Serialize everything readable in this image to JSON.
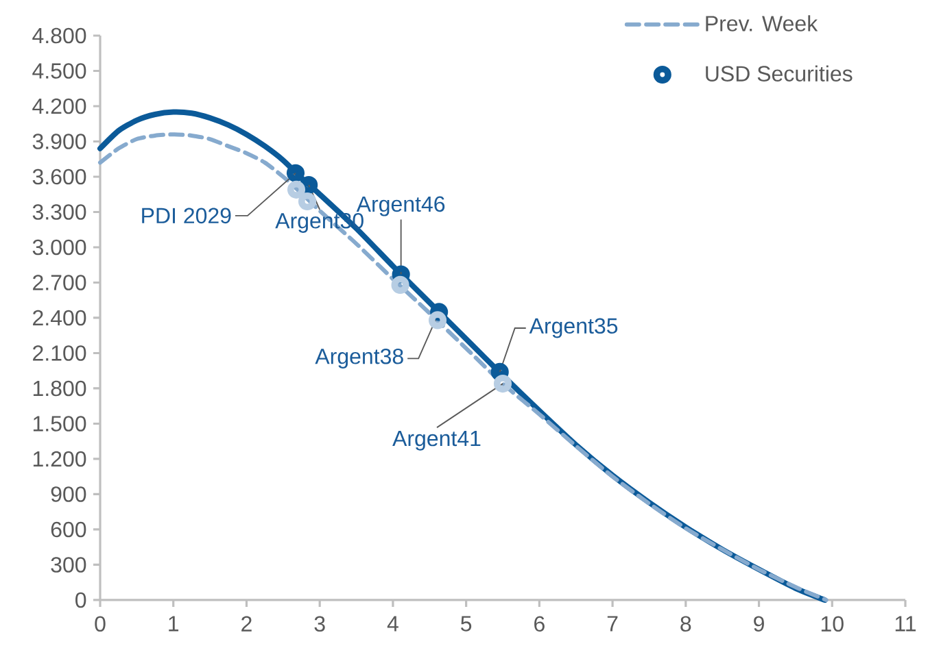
{
  "chart_data": {
    "type": "line",
    "xlim": [
      0,
      11
    ],
    "ylim": [
      0,
      4800
    ],
    "xticks": [
      0,
      1,
      2,
      3,
      4,
      5,
      6,
      7,
      8,
      9,
      10,
      11
    ],
    "yticks": [
      0,
      300,
      600,
      900,
      {
        "value": 1200,
        "label": "1.200"
      },
      {
        "value": 1500,
        "label": "1.500"
      },
      {
        "value": 1800,
        "label": "1.800"
      },
      {
        "value": 2100,
        "label": "2.100"
      },
      {
        "value": 2400,
        "label": "2.400"
      },
      {
        "value": 2700,
        "label": "2.700"
      },
      {
        "value": 3000,
        "label": "3.000"
      },
      {
        "value": 3300,
        "label": "3.300"
      },
      {
        "value": 3600,
        "label": "3.600"
      },
      {
        "value": 3900,
        "label": "3.900"
      },
      {
        "value": 4200,
        "label": "4.200"
      },
      {
        "value": 4500,
        "label": "4.500"
      },
      {
        "value": 4800,
        "label": "4.800"
      }
    ],
    "legend": "top right",
    "series": [
      {
        "color": "#0b5a99",
        "line_style": "solid",
        "marker": "none",
        "x": [
          0,
          0.25,
          0.5,
          0.75,
          1,
          1.25,
          1.5,
          1.75,
          2,
          2.25,
          2.5,
          2.75,
          3,
          3.5,
          4,
          4.5,
          5,
          5.5,
          6,
          6.5,
          7,
          7.5,
          8,
          8.5,
          9,
          9.5,
          9.9
        ],
        "values": [
          3840,
          3990,
          4080,
          4130,
          4150,
          4140,
          4100,
          4040,
          3960,
          3860,
          3740,
          3590,
          3450,
          3160,
          2840,
          2530,
          2220,
          1910,
          1610,
          1320,
          1060,
          830,
          620,
          430,
          260,
          100,
          0
        ]
      },
      {
        "name": "Prev. Week",
        "color": "#86aace",
        "line_style": "dashed",
        "marker": "none",
        "x": [
          0,
          0.25,
          0.5,
          0.75,
          1,
          1.25,
          1.5,
          1.75,
          2,
          2.25,
          2.5,
          2.75,
          3,
          3.5,
          4,
          4.5,
          5,
          5.5,
          6,
          6.5,
          7,
          7.5,
          8,
          8.5,
          9,
          9.5,
          9.92
        ],
        "values": [
          3720,
          3840,
          3920,
          3950,
          3960,
          3950,
          3920,
          3860,
          3800,
          3720,
          3600,
          3460,
          3310,
          3030,
          2730,
          2440,
          2140,
          1840,
          1580,
          1310,
          1050,
          820,
          610,
          430,
          260,
          110,
          0
        ]
      },
      {
        "name": "USD Securities",
        "type": "scatter",
        "color": "#0b5a99",
        "marker": "circle",
        "x": [
          2.67,
          2.85,
          4.11,
          4.63,
          5.46
        ],
        "values": [
          3630,
          3530,
          2770,
          2450,
          1940
        ]
      },
      {
        "type": "scatter",
        "color": "#b7cde3",
        "marker": "circle",
        "x": [
          2.68,
          2.83,
          4.1,
          4.61,
          5.5
        ],
        "values": [
          3490,
          3390,
          2680,
          2380,
          1840
        ]
      }
    ],
    "annotations": [
      {
        "text": "PDI 2029",
        "x": 2.67,
        "y": 3630
      },
      {
        "text": "Argent30",
        "x": 2.85,
        "y": 3530
      },
      {
        "text": "Argent46",
        "x": 4.11,
        "y": 2770
      },
      {
        "text": "Argent38",
        "x": 4.63,
        "y": 2450
      },
      {
        "text": "Argent35",
        "x": 5.46,
        "y": 1940
      },
      {
        "text": "Argent41",
        "x": 5.5,
        "y": 1840
      }
    ]
  }
}
